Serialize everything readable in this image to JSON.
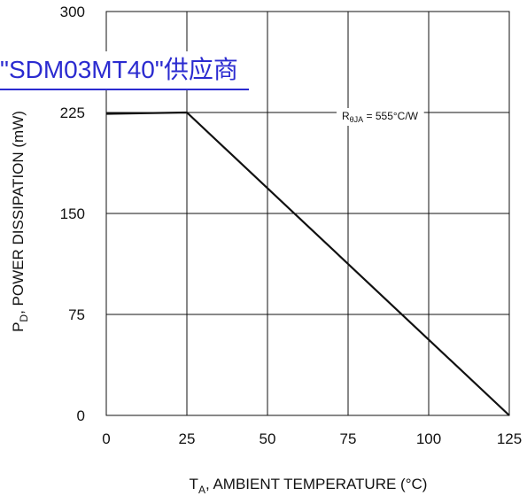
{
  "overlay": {
    "link_text": "\"SDM03MT40\"供应商"
  },
  "chart_data": {
    "type": "line",
    "title": "",
    "xlabel_main": "T",
    "xlabel_sub": "A",
    "xlabel_rest": ", AMBIENT TEMPERATURE (°C)",
    "ylabel_main": "P",
    "ylabel_sub": "D",
    "ylabel_rest": ", POWER DISSIPATION (mW)",
    "xlim": [
      0,
      125
    ],
    "ylim": [
      0,
      300
    ],
    "xticks": [
      0,
      25,
      50,
      75,
      100,
      125
    ],
    "yticks": [
      0,
      75,
      150,
      225,
      300
    ],
    "grid": true,
    "series": [
      {
        "x": [
          0,
          25,
          125
        ],
        "y": [
          224,
          225,
          0
        ]
      }
    ],
    "annotation": {
      "main": "R",
      "sub": "θJA",
      "rest": " = 555°C/W"
    }
  },
  "colors": {
    "line": "#111111",
    "grid": "#111111",
    "link": "#2b2bd0"
  }
}
